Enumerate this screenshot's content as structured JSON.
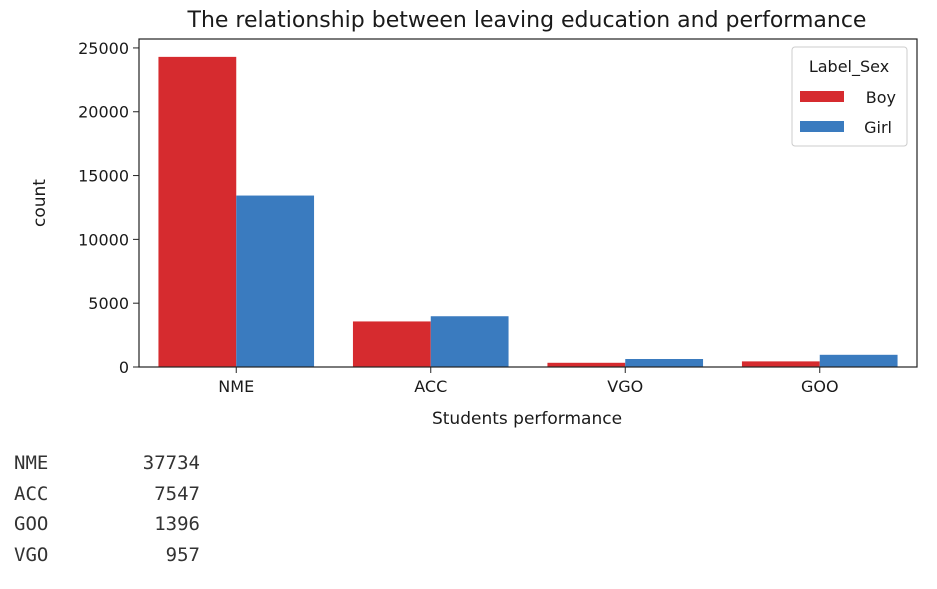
{
  "chart_data": {
    "type": "bar",
    "title": "The relationship between leaving education and performance",
    "xlabel": "Students performance",
    "ylabel": "count",
    "categories": [
      "NME",
      "ACC",
      "VGO",
      "GOO"
    ],
    "series": [
      {
        "name": "Boy",
        "color": "#d62b2f",
        "values": [
          24300,
          3570,
          330,
          440
        ]
      },
      {
        "name": "Girl",
        "color": "#3a7bbf",
        "values": [
          13434,
          3977,
          627,
          956
        ]
      }
    ],
    "ylim": [
      0,
      25700
    ],
    "yticks": [
      0,
      5000,
      10000,
      15000,
      20000,
      25000
    ],
    "legend": {
      "title": "Label_Sex",
      "placement": "top-right"
    },
    "grid": false
  },
  "output": {
    "rows": [
      {
        "key": "NME",
        "value": "37734"
      },
      {
        "key": "ACC",
        "value": "7547"
      },
      {
        "key": "GOO",
        "value": "1396"
      },
      {
        "key": "VGO",
        "value": "957"
      }
    ]
  }
}
